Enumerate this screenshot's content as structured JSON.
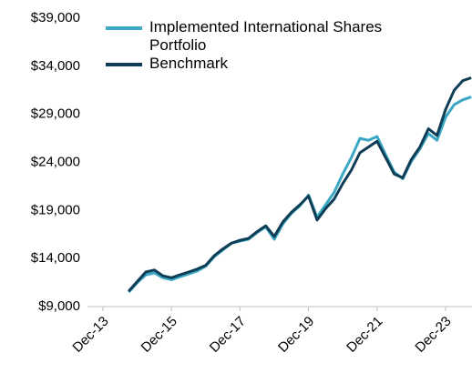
{
  "chart_data": {
    "type": "line",
    "categories": [
      "Dec-13",
      null,
      null,
      null,
      null,
      null,
      null,
      null,
      "Dec-15",
      null,
      null,
      null,
      null,
      null,
      null,
      null,
      "Dec-17",
      null,
      null,
      null,
      null,
      null,
      null,
      null,
      "Dec-19",
      null,
      null,
      null,
      null,
      null,
      null,
      null,
      "Dec-21",
      null,
      null,
      null,
      null,
      null,
      null,
      null,
      "Dec-23",
      null,
      null,
      null
    ],
    "series": [
      {
        "name": "Implemented International Shares Portfolio",
        "color": "#3aa7c4",
        "values": [
          null,
          null,
          null,
          10500,
          11500,
          12300,
          12500,
          12000,
          11800,
          12100,
          12400,
          12700,
          13200,
          14200,
          14900,
          15600,
          15800,
          16000,
          16700,
          17300,
          16000,
          17600,
          18700,
          19500,
          20600,
          18300,
          19600,
          20900,
          22800,
          24500,
          26500,
          26300,
          26700,
          24800,
          23000,
          22300,
          24100,
          25400,
          27000,
          26300,
          28700,
          30000,
          30500,
          30800
        ]
      },
      {
        "name": "Benchmark",
        "color": "#0e3d55",
        "values": [
          null,
          null,
          null,
          10600,
          11600,
          12600,
          12800,
          12200,
          12000,
          12300,
          12600,
          12900,
          13300,
          14300,
          15000,
          15600,
          15900,
          16100,
          16800,
          17400,
          16300,
          17800,
          18800,
          19600,
          20500,
          18000,
          19200,
          20200,
          21800,
          23200,
          25000,
          25600,
          26200,
          24500,
          22800,
          22400,
          24300,
          25600,
          27500,
          26800,
          29500,
          31500,
          32500,
          32800
        ]
      }
    ],
    "ylim": [
      9000,
      39000
    ],
    "yticks": [
      {
        "value": 9000,
        "label": "$9,000"
      },
      {
        "value": 14000,
        "label": "$14,000"
      },
      {
        "value": 19000,
        "label": "$19,000"
      },
      {
        "value": 24000,
        "label": "$24,000"
      },
      {
        "value": 29000,
        "label": "$29,000"
      },
      {
        "value": 34000,
        "label": "$34,000"
      },
      {
        "value": 39000,
        "label": "$39,000"
      }
    ],
    "legend": "upper left",
    "grid": false
  }
}
